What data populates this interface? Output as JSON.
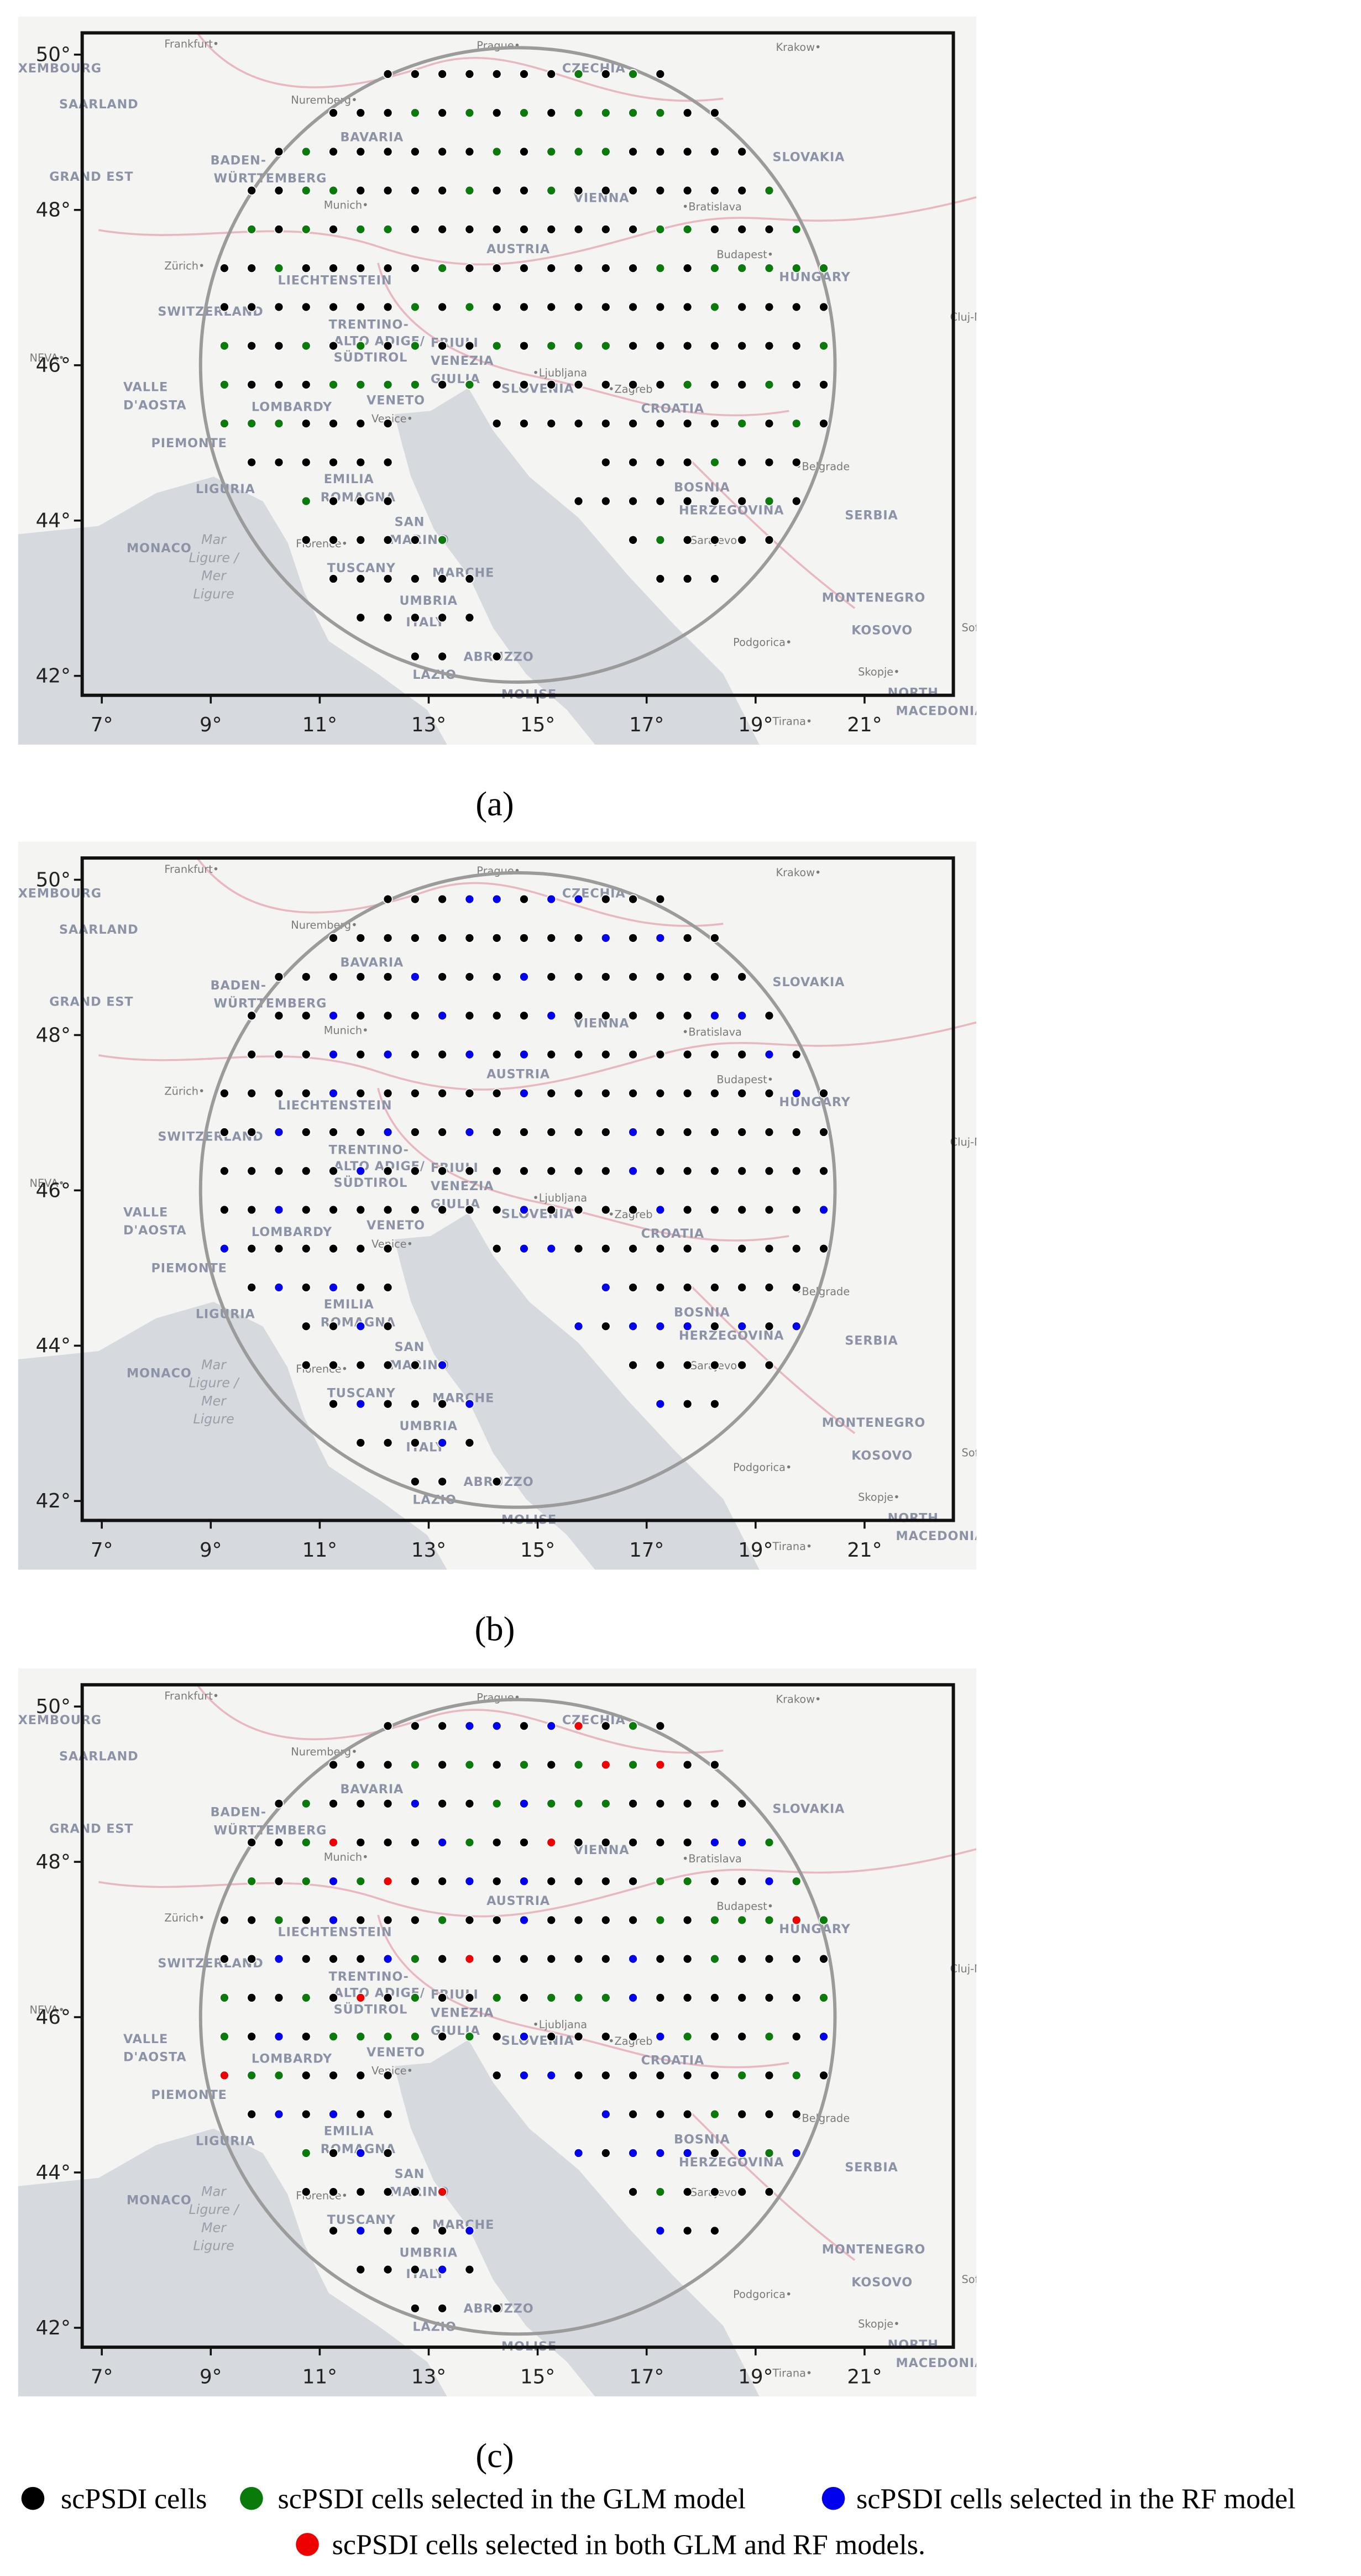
{
  "axes": {
    "lon_lim": [
      6.64,
      22.63
    ],
    "lat_lim": [
      41.75,
      50.28
    ],
    "lon_ticks": [
      {
        "value": 7,
        "label": "7°"
      },
      {
        "value": 9,
        "label": "9°"
      },
      {
        "value": 11,
        "label": "11°"
      },
      {
        "value": 13,
        "label": "13°"
      },
      {
        "value": 15,
        "label": "15°"
      },
      {
        "value": 17,
        "label": "17°"
      },
      {
        "value": 19,
        "label": "19°"
      },
      {
        "value": 21,
        "label": "21°"
      }
    ],
    "lat_ticks": [
      {
        "value": 42,
        "label": "42°"
      },
      {
        "value": 44,
        "label": "44°"
      },
      {
        "value": 46,
        "label": "46°"
      },
      {
        "value": 48,
        "label": "48°"
      },
      {
        "value": 50,
        "label": "50°"
      }
    ]
  },
  "map_labels": [
    "Frankfurt•",
    "Prague•",
    "Krakow•",
    "XEMBOURG",
    "CZECHIA",
    "Nuremberg•",
    "SAARLAND",
    "BAVARIA",
    "BADEN-",
    "WÜRTTEMBERG",
    "SLOVAKIA",
    "GRAND EST",
    "Munich•",
    "VIENNA",
    "•Bratislava",
    "Zürich•",
    "AUSTRIA",
    "Budapest•",
    "LIECHTENSTEIN",
    "HUNGARY",
    "SWITZERLAND",
    "Cluj-Napoc",
    "TRENTINO-",
    "ALTO ADIGE/",
    "SÜDTIROL",
    "FRIULI",
    "VENEZIA",
    "GIULIA",
    "NEVA•",
    "•Ljubljana",
    "VALLE",
    "D'AOSTA",
    "SLOVENIA",
    "•Zagreb",
    "LOMBARDY",
    "VENETO",
    "CROATIA",
    "Venice•",
    "PIEMONTE",
    "LIGURIA",
    "EMILIA",
    "ROMAGNA",
    "•Belgrade",
    "BOSNIA",
    "HERZEGOVINA",
    "SERBIA",
    "MONACO",
    "Mar",
    "Ligure /",
    "Mer",
    "Ligure",
    "Florence•",
    "SAN",
    "MARINO",
    "Sarajevo•",
    "TUSCANY",
    "MARCHE",
    "MONTENEGRO",
    "UMBRIA",
    "ITALY",
    "KOSOVO",
    "Podgorica•",
    "Sofia",
    "ABRUZZO",
    "LAZIO",
    "MOLISE",
    "Skopje•",
    "NORTH",
    "MACEDONIA",
    "Tirana•"
  ],
  "grid_rows": [
    {
      "lat": 49.75,
      "lon0": 12.25
    },
    {
      "lat": 49.25,
      "lon0": 11.25
    },
    {
      "lat": 48.75,
      "lon0": 10.25
    },
    {
      "lat": 48.25,
      "lon0": 9.75
    },
    {
      "lat": 47.75,
      "lon0": 9.75
    },
    {
      "lat": 47.25,
      "lon0": 9.25
    },
    {
      "lat": 46.75,
      "lon0": 9.25
    },
    {
      "lat": 46.25,
      "lon0": 9.25
    },
    {
      "lat": 45.75,
      "lon0": 9.25
    },
    {
      "lat": 45.25,
      "lon0": 9.25
    },
    {
      "lat": 44.75,
      "lon0": 9.75
    },
    {
      "lat": 44.25,
      "lon0": 10.75
    },
    {
      "lat": 43.75,
      "lon0": 10.75
    },
    {
      "lat": 43.25,
      "lon0": 11.25
    },
    {
      "lat": 42.75,
      "lon0": 11.75
    },
    {
      "lat": 42.25,
      "lon0": 12.75
    }
  ],
  "panels": [
    {
      "caption": "(a)",
      "cells": [
        [
          0,
          0,
          0,
          0,
          0,
          0,
          0,
          1,
          0,
          1,
          0
        ],
        [
          0,
          0,
          0,
          1,
          0,
          1,
          0,
          1,
          0,
          1,
          1,
          1,
          1,
          0,
          0
        ],
        [
          0,
          1,
          0,
          0,
          0,
          0,
          0,
          0,
          1,
          0,
          1,
          1,
          1,
          0,
          0,
          0,
          0,
          0
        ],
        [
          0,
          0,
          1,
          1,
          0,
          0,
          0,
          0,
          1,
          0,
          0,
          1,
          0,
          0,
          0,
          0,
          0,
          0,
          0,
          1
        ],
        [
          1,
          0,
          1,
          0,
          1,
          1,
          0,
          0,
          0,
          0,
          0,
          0,
          0,
          0,
          0,
          1,
          1,
          0,
          0,
          0,
          1
        ],
        [
          0,
          0,
          1,
          0,
          0,
          0,
          0,
          0,
          1,
          0,
          0,
          0,
          0,
          0,
          0,
          0,
          1,
          0,
          1,
          1,
          1,
          1,
          1
        ],
        [
          0,
          0,
          0,
          0,
          0,
          0,
          0,
          1,
          0,
          1,
          0,
          0,
          0,
          0,
          0,
          0,
          0,
          0,
          1,
          0,
          0,
          0,
          0
        ],
        [
          1,
          0,
          0,
          1,
          0,
          1,
          0,
          1,
          0,
          0,
          1,
          0,
          1,
          1,
          1,
          0,
          0,
          0,
          0,
          0,
          0,
          0,
          1
        ],
        [
          1,
          0,
          0,
          0,
          1,
          1,
          1,
          1,
          0,
          1,
          0,
          0,
          0,
          0,
          0,
          0,
          0,
          1,
          0,
          0,
          1,
          0,
          0
        ],
        [
          1,
          1,
          1,
          0,
          0,
          0,
          0,
          null,
          null,
          null,
          0,
          0,
          0,
          0,
          0,
          0,
          0,
          0,
          0,
          1,
          0,
          1,
          0
        ],
        [
          0,
          0,
          0,
          0,
          0,
          0,
          null,
          null,
          null,
          null,
          null,
          null,
          null,
          0,
          0,
          0,
          0,
          1,
          0,
          0,
          0
        ],
        [
          1,
          0,
          0,
          0,
          null,
          null,
          null,
          null,
          null,
          null,
          0,
          0,
          0,
          0,
          0,
          0,
          0,
          1,
          0
        ],
        [
          0,
          0,
          0,
          0,
          0,
          1,
          null,
          null,
          null,
          null,
          null,
          null,
          0,
          1,
          0,
          0,
          0,
          0
        ],
        [
          0,
          0,
          0,
          0,
          0,
          0,
          null,
          null,
          null,
          null,
          null,
          null,
          0,
          0,
          0
        ],
        [
          0,
          0,
          0,
          0,
          0
        ],
        [
          0,
          0,
          null,
          0
        ]
      ]
    },
    {
      "caption": "(b)",
      "cells": [
        [
          0,
          0,
          0,
          2,
          2,
          0,
          2,
          2,
          0,
          0,
          0
        ],
        [
          0,
          0,
          0,
          0,
          0,
          0,
          0,
          0,
          0,
          0,
          2,
          0,
          2,
          0,
          0
        ],
        [
          0,
          0,
          0,
          0,
          0,
          2,
          0,
          0,
          0,
          2,
          0,
          0,
          0,
          0,
          0,
          0,
          0,
          0
        ],
        [
          0,
          0,
          0,
          2,
          0,
          0,
          0,
          2,
          0,
          0,
          0,
          2,
          0,
          0,
          0,
          0,
          0,
          2,
          2,
          0
        ],
        [
          0,
          0,
          0,
          2,
          0,
          2,
          0,
          0,
          2,
          0,
          2,
          0,
          0,
          0,
          0,
          0,
          0,
          0,
          0,
          2,
          0
        ],
        [
          0,
          0,
          0,
          0,
          2,
          0,
          0,
          0,
          0,
          0,
          0,
          2,
          0,
          0,
          0,
          0,
          0,
          0,
          0,
          0,
          0,
          2,
          0
        ],
        [
          0,
          0,
          2,
          0,
          0,
          0,
          2,
          0,
          0,
          2,
          0,
          0,
          0,
          0,
          0,
          2,
          0,
          0,
          0,
          0,
          0,
          0,
          0
        ],
        [
          0,
          0,
          0,
          0,
          0,
          2,
          0,
          0,
          0,
          0,
          0,
          0,
          0,
          0,
          0,
          2,
          0,
          0,
          0,
          0,
          0,
          0,
          0
        ],
        [
          0,
          0,
          2,
          0,
          0,
          0,
          0,
          0,
          0,
          0,
          0,
          2,
          0,
          0,
          0,
          0,
          2,
          0,
          0,
          0,
          0,
          0,
          2
        ],
        [
          2,
          0,
          0,
          0,
          0,
          0,
          0,
          null,
          null,
          null,
          0,
          2,
          2,
          0,
          0,
          0,
          0,
          0,
          0,
          0,
          0,
          0,
          0
        ],
        [
          0,
          2,
          0,
          2,
          0,
          0,
          null,
          null,
          null,
          null,
          null,
          null,
          null,
          2,
          0,
          0,
          0,
          0,
          0,
          0,
          0
        ],
        [
          0,
          0,
          2,
          0,
          null,
          null,
          null,
          null,
          null,
          null,
          2,
          0,
          2,
          2,
          2,
          0,
          2,
          0,
          2
        ],
        [
          0,
          0,
          0,
          0,
          0,
          2,
          null,
          null,
          null,
          null,
          null,
          null,
          0,
          0,
          0,
          0,
          0,
          0
        ],
        [
          0,
          2,
          0,
          0,
          0,
          2,
          null,
          null,
          null,
          null,
          null,
          null,
          2,
          0,
          0
        ],
        [
          0,
          0,
          0,
          2,
          0
        ],
        [
          0,
          0,
          null,
          0
        ]
      ]
    },
    {
      "caption": "(c)",
      "cells": [
        [
          0,
          0,
          0,
          2,
          2,
          0,
          2,
          3,
          0,
          1,
          0
        ],
        [
          0,
          0,
          0,
          1,
          0,
          1,
          0,
          1,
          0,
          1,
          3,
          1,
          3,
          0,
          0
        ],
        [
          0,
          1,
          0,
          0,
          0,
          2,
          0,
          0,
          1,
          2,
          1,
          1,
          1,
          0,
          0,
          0,
          0,
          0
        ],
        [
          0,
          0,
          1,
          3,
          0,
          0,
          0,
          2,
          1,
          0,
          0,
          3,
          0,
          0,
          0,
          0,
          0,
          2,
          2,
          1
        ],
        [
          1,
          0,
          1,
          2,
          1,
          3,
          0,
          0,
          2,
          0,
          2,
          0,
          0,
          0,
          0,
          1,
          1,
          0,
          0,
          2,
          1
        ],
        [
          0,
          0,
          1,
          0,
          2,
          0,
          0,
          0,
          1,
          0,
          0,
          2,
          0,
          0,
          0,
          0,
          1,
          0,
          1,
          1,
          1,
          3,
          1
        ],
        [
          0,
          0,
          2,
          0,
          0,
          0,
          2,
          1,
          0,
          3,
          0,
          0,
          0,
          0,
          0,
          2,
          0,
          0,
          1,
          0,
          0,
          0,
          0
        ],
        [
          1,
          0,
          0,
          1,
          0,
          3,
          0,
          1,
          0,
          0,
          1,
          0,
          1,
          1,
          1,
          2,
          0,
          0,
          0,
          0,
          0,
          0,
          1
        ],
        [
          1,
          0,
          2,
          0,
          1,
          1,
          1,
          1,
          0,
          1,
          0,
          2,
          0,
          0,
          0,
          0,
          2,
          1,
          0,
          0,
          1,
          0,
          2
        ],
        [
          3,
          1,
          1,
          0,
          0,
          0,
          0,
          null,
          null,
          null,
          0,
          2,
          2,
          0,
          0,
          0,
          0,
          0,
          0,
          1,
          0,
          1,
          0
        ],
        [
          0,
          2,
          0,
          2,
          0,
          0,
          null,
          null,
          null,
          null,
          null,
          null,
          null,
          2,
          0,
          0,
          0,
          1,
          0,
          0,
          0
        ],
        [
          1,
          0,
          2,
          0,
          null,
          null,
          null,
          null,
          null,
          null,
          2,
          0,
          2,
          2,
          2,
          0,
          2,
          1,
          2
        ],
        [
          0,
          0,
          0,
          0,
          0,
          3,
          null,
          null,
          null,
          null,
          null,
          null,
          0,
          1,
          0,
          0,
          0,
          0
        ],
        [
          0,
          2,
          0,
          0,
          0,
          2,
          null,
          null,
          null,
          null,
          null,
          null,
          2,
          0,
          0
        ],
        [
          0,
          0,
          0,
          2,
          0
        ],
        [
          0,
          0,
          null,
          0
        ]
      ]
    }
  ],
  "legend": [
    {
      "label": "scPSDI cells",
      "color": "#000000"
    },
    {
      "label": "scPSDI cells selected in the GLM model",
      "color": "#0a7a0a"
    },
    {
      "label": "scPSDI cells selected in the RF model",
      "color": "#0000ee"
    },
    {
      "label": "scPSDI cells selected in both GLM and RF models.",
      "color": "#ee0000"
    }
  ]
}
